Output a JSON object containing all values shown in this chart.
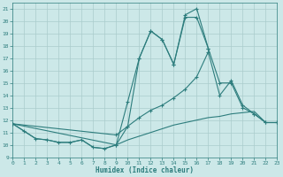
{
  "bg_color": "#cce8e8",
  "grid_color": "#aacccc",
  "line_color": "#2d7d7d",
  "xlabel": "Humidex (Indice chaleur)",
  "xlim": [
    0,
    23
  ],
  "ylim": [
    9,
    21.5
  ],
  "xticks": [
    0,
    1,
    2,
    3,
    4,
    5,
    6,
    7,
    8,
    9,
    10,
    11,
    12,
    13,
    14,
    15,
    16,
    17,
    18,
    19,
    20,
    21,
    22,
    23
  ],
  "yticks": [
    9,
    10,
    11,
    12,
    13,
    14,
    15,
    16,
    17,
    18,
    19,
    20,
    21
  ],
  "series": [
    {
      "comment": "spiky line - peaks at 12=19, 15=20.5, 16=21, dip at 13=18.5, 14=16.5",
      "x": [
        0,
        1,
        2,
        3,
        4,
        5,
        6,
        7,
        8,
        9,
        10,
        11,
        12,
        13,
        14,
        15,
        16,
        17
      ],
      "y": [
        11.7,
        11.1,
        10.5,
        10.4,
        10.2,
        10.2,
        10.4,
        9.8,
        9.7,
        10.0,
        11.5,
        17.0,
        19.2,
        18.5,
        16.5,
        20.5,
        21.0,
        17.8
      ],
      "marker": true
    },
    {
      "x": [
        0,
        9,
        10,
        11,
        12,
        13,
        14,
        15,
        16,
        17,
        18,
        19,
        20,
        21,
        22,
        23
      ],
      "y": [
        11.7,
        10.0,
        13.5,
        17.0,
        19.2,
        18.5,
        16.5,
        20.3,
        20.3,
        17.8,
        15.0,
        15.0,
        13.0,
        12.5,
        11.8,
        11.8
      ],
      "marker": true
    },
    {
      "x": [
        0,
        9,
        10,
        11,
        12,
        13,
        14,
        15,
        16,
        17,
        18,
        19,
        20,
        21,
        22,
        23
      ],
      "y": [
        11.7,
        10.8,
        11.5,
        12.2,
        12.8,
        13.2,
        13.8,
        14.5,
        15.5,
        17.5,
        14.0,
        15.2,
        13.2,
        12.5,
        11.8,
        11.8
      ],
      "marker": true
    },
    {
      "x": [
        0,
        1,
        2,
        3,
        4,
        5,
        6,
        7,
        8,
        9,
        10,
        11,
        12,
        13,
        14,
        15,
        16,
        17,
        18,
        19,
        20,
        21,
        22,
        23
      ],
      "y": [
        11.7,
        11.1,
        10.5,
        10.4,
        10.2,
        10.2,
        10.4,
        9.8,
        9.7,
        10.0,
        10.4,
        10.7,
        11.0,
        11.3,
        11.6,
        11.8,
        12.0,
        12.2,
        12.3,
        12.5,
        12.6,
        12.7,
        11.8,
        11.8
      ],
      "marker": false
    }
  ]
}
